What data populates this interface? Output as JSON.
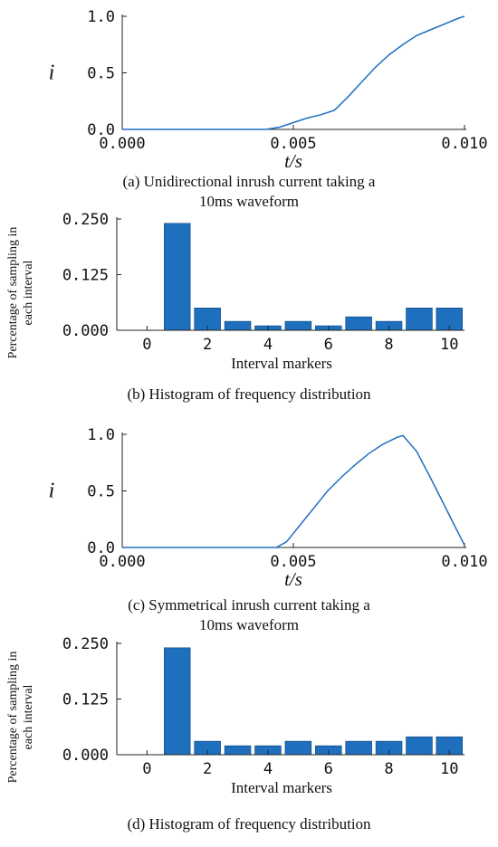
{
  "colors": {
    "line": "#1f6fbf",
    "bar": "#1f6fbf",
    "axis": "#222222"
  },
  "chart_data": [
    {
      "type": "line",
      "caption": "(a) Unidirectional inrush current taking a 10ms waveform",
      "xlabel": "t/s",
      "ylabel": "i",
      "xlim": [
        0.0,
        0.01
      ],
      "ylim": [
        0.0,
        1.0
      ],
      "x_ticks": [
        "0.000",
        "0.005",
        "0.010"
      ],
      "y_ticks": [
        "0.0",
        "0.5",
        "1.0"
      ],
      "x": [
        0.0,
        0.0025,
        0.0042,
        0.0046,
        0.005,
        0.0054,
        0.0058,
        0.0062,
        0.0066,
        0.007,
        0.0074,
        0.0078,
        0.0082,
        0.0086,
        0.009,
        0.0094,
        0.0098,
        0.01
      ],
      "y": [
        0.0,
        0.0,
        0.0,
        0.02,
        0.06,
        0.1,
        0.13,
        0.17,
        0.29,
        0.42,
        0.55,
        0.66,
        0.75,
        0.83,
        0.88,
        0.93,
        0.98,
        1.0
      ]
    },
    {
      "type": "bar",
      "caption": "(b) Histogram of frequency distribution",
      "xlabel": "Interval markers",
      "ylabel": "Percentage of sampling in each interval",
      "ylim": [
        0.0,
        0.25
      ],
      "x_ticks": [
        "0",
        "2",
        "4",
        "6",
        "8",
        "10"
      ],
      "y_ticks": [
        "0.000",
        "0.125",
        "0.250"
      ],
      "categories": [
        0,
        1,
        2,
        3,
        4,
        5,
        6,
        7,
        8,
        9,
        10
      ],
      "values": [
        0.0,
        0.24,
        0.05,
        0.02,
        0.01,
        0.02,
        0.01,
        0.03,
        0.02,
        0.05,
        0.05
      ]
    },
    {
      "type": "line",
      "caption": "(c) Symmetrical inrush current taking a 10ms waveform",
      "xlabel": "t/s",
      "ylabel": "i",
      "xlim": [
        0.0,
        0.01
      ],
      "ylim": [
        0.0,
        1.0
      ],
      "x_ticks": [
        "0.000",
        "0.005",
        "0.010"
      ],
      "y_ticks": [
        "0.0",
        "0.5",
        "1.0"
      ],
      "x": [
        0.0,
        0.003,
        0.0045,
        0.0048,
        0.0052,
        0.0056,
        0.006,
        0.0064,
        0.0068,
        0.0072,
        0.0076,
        0.008,
        0.0082,
        0.0086,
        0.009,
        0.0094,
        0.0098,
        0.01
      ],
      "y": [
        0.0,
        0.0,
        0.0,
        0.05,
        0.2,
        0.35,
        0.5,
        0.62,
        0.73,
        0.83,
        0.91,
        0.97,
        0.99,
        0.85,
        0.62,
        0.38,
        0.14,
        0.02
      ]
    },
    {
      "type": "bar",
      "caption": "(d) Histogram of frequency distribution",
      "xlabel": "Interval markers",
      "ylabel": "Percentage of sampling in each interval",
      "ylim": [
        0.0,
        0.25
      ],
      "x_ticks": [
        "0",
        "2",
        "4",
        "6",
        "8",
        "10"
      ],
      "y_ticks": [
        "0.000",
        "0.125",
        "0.250"
      ],
      "categories": [
        0,
        1,
        2,
        3,
        4,
        5,
        6,
        7,
        8,
        9,
        10
      ],
      "values": [
        0.0,
        0.24,
        0.03,
        0.02,
        0.02,
        0.03,
        0.02,
        0.03,
        0.03,
        0.04,
        0.04
      ]
    }
  ]
}
